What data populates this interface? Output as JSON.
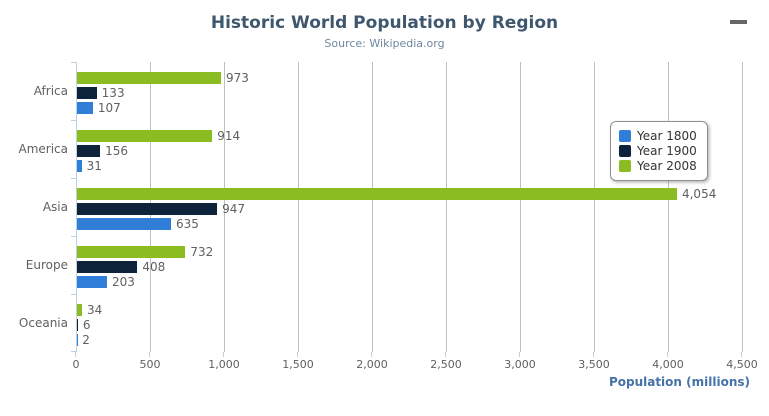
{
  "chart_data": {
    "type": "bar",
    "orientation": "horizontal",
    "title": "Historic World Population by Region",
    "subtitle": "Source: Wikipedia.org",
    "categories": [
      "Africa",
      "America",
      "Asia",
      "Europe",
      "Oceania"
    ],
    "series": [
      {
        "name": "Year 1800",
        "color": "#2f7ed8",
        "values": [
          107,
          31,
          635,
          203,
          2
        ]
      },
      {
        "name": "Year 1900",
        "color": "#0d233a",
        "values": [
          133,
          156,
          947,
          408,
          6
        ]
      },
      {
        "name": "Year 2008",
        "color": "#8bbc21",
        "values": [
          973,
          914,
          4054,
          732,
          34
        ]
      }
    ],
    "bar_display_order_top_to_bottom": [
      "Year 2008",
      "Year 1900",
      "Year 1800"
    ],
    "data_labels_shown": true,
    "data_label_examples": [
      "973",
      "133",
      "107",
      "914",
      "156",
      "31",
      "4,054",
      "947",
      "635",
      "732",
      "408",
      "203",
      "34",
      "6",
      "2"
    ],
    "xlabel": "Population (millions)",
    "xlim": [
      0,
      4500
    ],
    "x_ticks": [
      {
        "value": 0,
        "label": "0"
      },
      {
        "value": 500,
        "label": "500"
      },
      {
        "value": 1000,
        "label": "1,000"
      },
      {
        "value": 1500,
        "label": "1,500"
      },
      {
        "value": 2000,
        "label": "2,000"
      },
      {
        "value": 2500,
        "label": "2,500"
      },
      {
        "value": 3000,
        "label": "3,000"
      },
      {
        "value": 3500,
        "label": "3,500"
      },
      {
        "value": 4000,
        "label": "4,000"
      },
      {
        "value": 4500,
        "label": "4,500"
      }
    ],
    "grid": true,
    "legend": {
      "position": "right-floating",
      "items": [
        "Year 1800",
        "Year 1900",
        "Year 2008"
      ]
    }
  },
  "toolbar": {
    "menu_icon": "hamburger-icon"
  },
  "colors": {
    "title": "#3E576F",
    "subtitle": "#6D869F",
    "axis_title": "#4572A7",
    "labels": "#606060",
    "gridline": "#C0C0C0",
    "axis_line": "#C0D0E0",
    "legend_border": "#909090",
    "legend_text": "#333333",
    "menu_icon": "#666666",
    "series_year_1800": "#2f7ed8",
    "series_year_1900": "#0d233a",
    "series_year_2008": "#8bbc21"
  }
}
